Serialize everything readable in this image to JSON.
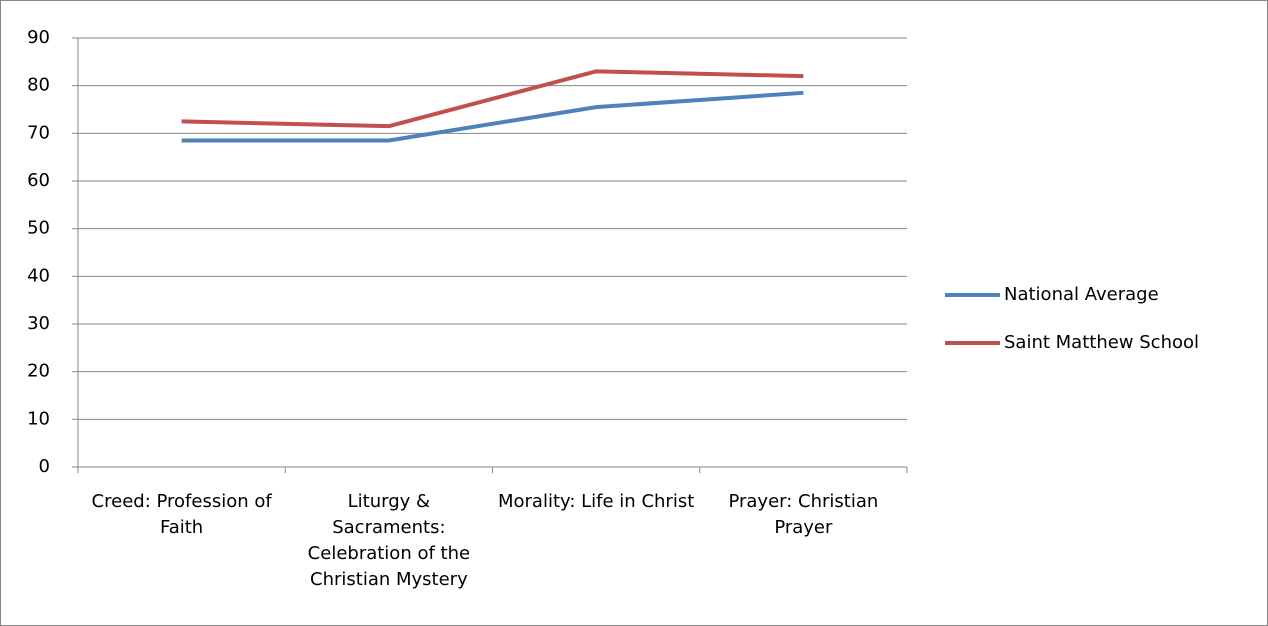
{
  "chart_data": {
    "type": "line",
    "categories": [
      "Creed: Profession of Faith",
      "Liturgy & Sacraments: Celebration of the Christian Mystery",
      "Morality: Life in Christ",
      "Prayer: Christian Prayer"
    ],
    "series": [
      {
        "name": "National Average",
        "color": "#4f81bd",
        "values": [
          68.5,
          68.5,
          75.5,
          78.5
        ]
      },
      {
        "name": "Saint Matthew School",
        "color": "#c0504d",
        "values": [
          72.5,
          71.5,
          83,
          82
        ]
      }
    ],
    "ylim": [
      0,
      90
    ],
    "yticks": [
      0,
      10,
      20,
      30,
      40,
      50,
      60,
      70,
      80,
      90
    ],
    "grid": true,
    "legend": "right"
  }
}
